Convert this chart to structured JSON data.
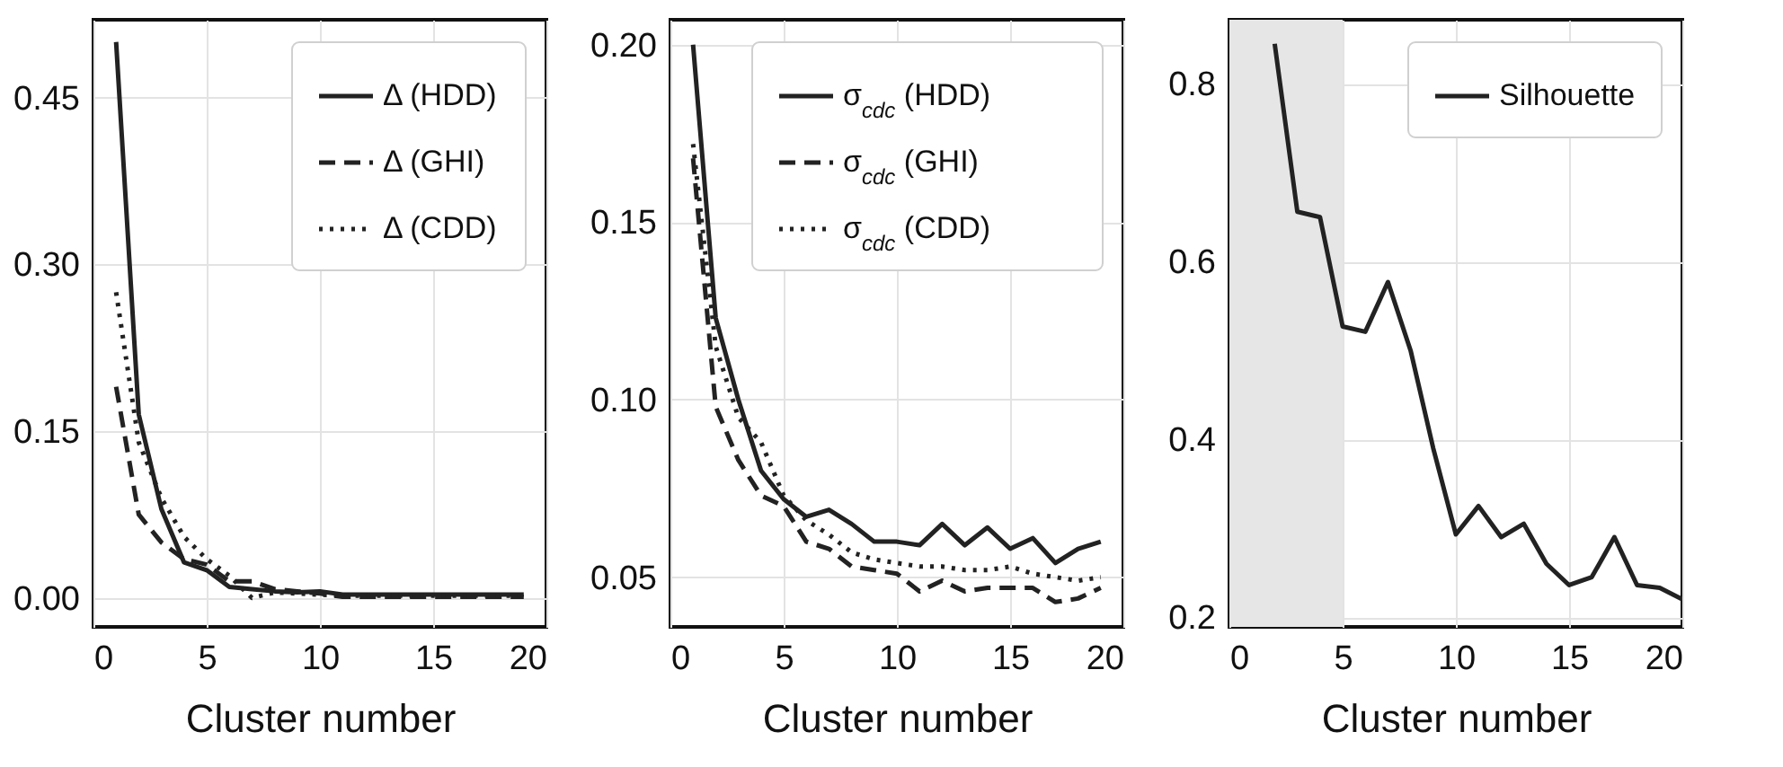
{
  "chart_data": [
    {
      "type": "line",
      "xlabel": "Cluster number",
      "x": [
        1,
        2,
        3,
        4,
        5,
        6,
        7,
        8,
        9,
        10,
        11,
        12,
        13,
        14,
        15,
        16,
        17,
        18,
        19
      ],
      "xlim": [
        0,
        20
      ],
      "xticks": [
        0,
        5,
        10,
        15,
        20
      ],
      "ylim": [
        -0.026,
        0.52
      ],
      "yticks": [
        {
          "value": 0,
          "label": "0.00"
        },
        0.15,
        {
          "value": 0.3,
          "label": "0.30"
        },
        0.45
      ],
      "grid": true,
      "legend": "top right",
      "series": [
        {
          "name": "Δ (HDD)",
          "color": "#222222",
          "line_style": "solid",
          "values": [
            0.5,
            0.165,
            0.08,
            0.032,
            0.025,
            0.01,
            0.008,
            0.006,
            0.005,
            0.006,
            0.003,
            0.003,
            0.003,
            0.003,
            0.003,
            0.003,
            0.003,
            0.003,
            0.003
          ]
        },
        {
          "name": "Δ (GHI)",
          "color": "#222222",
          "line_style": "dashed",
          "values": [
            0.19,
            0.075,
            0.05,
            0.035,
            0.03,
            0.015,
            0.015,
            0.008,
            0.006,
            0.004,
            0.001,
            0.001,
            0.001,
            0.001,
            0.001,
            0.001,
            0.001,
            0.001,
            0.001
          ]
        },
        {
          "name": "Δ (CDD)",
          "color": "#222222",
          "line_style": "dotted",
          "values": [
            0.275,
            0.14,
            0.09,
            0.055,
            0.035,
            0.02,
            0.0,
            0.005,
            0.004,
            0.003,
            0.002,
            0.002,
            0.002,
            0.002,
            0.002,
            0.002,
            0.002,
            0.002,
            0.002
          ]
        }
      ]
    },
    {
      "type": "line",
      "xlabel": "Cluster number",
      "x": [
        1,
        2,
        3,
        4,
        5,
        6,
        7,
        8,
        9,
        10,
        11,
        12,
        13,
        14,
        15,
        16,
        17,
        18,
        19
      ],
      "xlim": [
        0,
        20
      ],
      "xticks": [
        0,
        5,
        10,
        15,
        20
      ],
      "ylim": [
        0.036,
        0.207
      ],
      "yticks": [
        0.05,
        {
          "value": 0.1,
          "label": "0.10"
        },
        0.15,
        {
          "value": 0.2,
          "label": "0.20"
        }
      ],
      "grid": true,
      "legend": "top right",
      "series": [
        {
          "name": "σ$_{cdc}$ (HDD)",
          "color": "#222222",
          "line_style": "solid",
          "values": [
            0.2,
            0.123,
            0.1,
            0.08,
            0.072,
            0.067,
            0.069,
            0.065,
            0.06,
            0.06,
            0.059,
            0.065,
            0.059,
            0.064,
            0.058,
            0.061,
            0.054,
            0.058,
            0.06
          ]
        },
        {
          "name": "σ$_{cdc}$ (GHI)",
          "color": "#222222",
          "line_style": "dashed",
          "values": [
            0.168,
            0.098,
            0.083,
            0.073,
            0.07,
            0.06,
            0.058,
            0.053,
            0.052,
            0.051,
            0.046,
            0.049,
            0.046,
            0.047,
            0.047,
            0.047,
            0.043,
            0.044,
            0.047
          ]
        },
        {
          "name": "σ$_{cdc}$ (CDD)",
          "color": "#222222",
          "line_style": "dotted",
          "values": [
            0.172,
            0.115,
            0.095,
            0.088,
            0.073,
            0.066,
            0.062,
            0.057,
            0.055,
            0.054,
            0.053,
            0.053,
            0.052,
            0.052,
            0.053,
            0.051,
            0.05,
            0.049,
            0.05
          ]
        }
      ]
    },
    {
      "type": "line",
      "xlabel": "Cluster number",
      "x": [
        2,
        3,
        4,
        5,
        6,
        7,
        8,
        9,
        10,
        11,
        12,
        13,
        14,
        15,
        16,
        17,
        18,
        19,
        20
      ],
      "xlim": [
        0,
        20
      ],
      "xticks": [
        0,
        5,
        10,
        15,
        20
      ],
      "ylim": [
        0.189,
        0.872
      ],
      "yticks": [
        0.2,
        0.4,
        0.6,
        0.8
      ],
      "grid": true,
      "legend": "top right",
      "bands": [
        {
          "axis": "x",
          "from": 0,
          "to": 5,
          "color": "#e6e6e6"
        }
      ],
      "series": [
        {
          "name": "Silhouette",
          "color": "#222222",
          "line_style": "solid",
          "values": [
            0.845,
            0.656,
            0.65,
            0.527,
            0.521,
            0.577,
            0.5,
            0.39,
            0.293,
            0.325,
            0.29,
            0.305,
            0.26,
            0.236,
            0.245,
            0.29,
            0.236,
            0.233,
            0.22
          ]
        }
      ]
    }
  ]
}
